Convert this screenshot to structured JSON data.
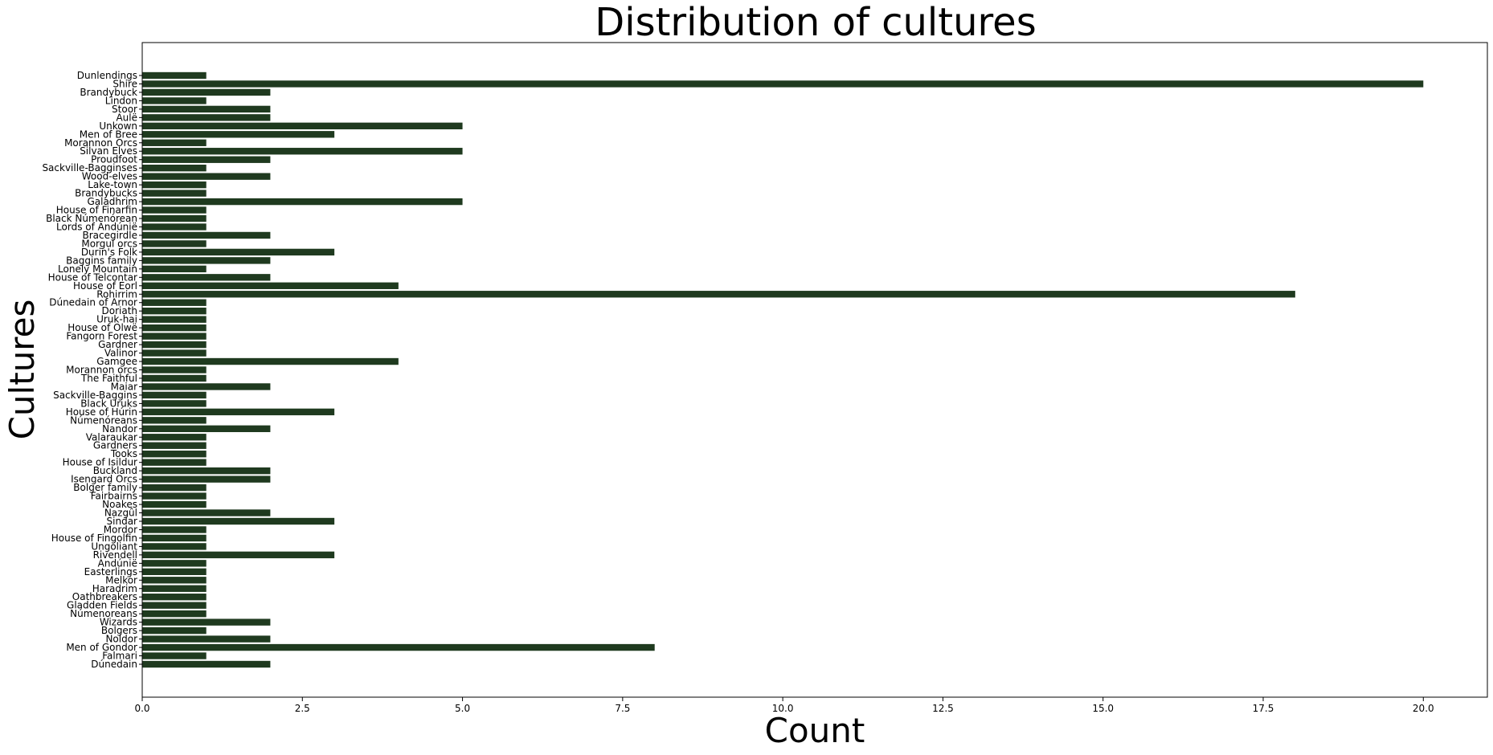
{
  "chart_data": {
    "type": "bar",
    "orientation": "horizontal",
    "title": "Distribution of cultures",
    "xlabel": "Count",
    "ylabel": "Cultures",
    "xlim": [
      0,
      21
    ],
    "xticks": [
      "0.0",
      "2.5",
      "5.0",
      "7.5",
      "10.0",
      "12.5",
      "15.0",
      "17.5",
      "20.0"
    ],
    "grid": false,
    "bar_color": "#1f3a1f",
    "categories": [
      "Dunlendings",
      "Shire",
      "Brandybuck",
      "Lindon",
      "Stoor",
      "Aulë",
      "Unkown",
      "Men of Bree",
      "Morannon Orcs",
      "Silvan Elves",
      "Proudfoot",
      "Sackville-Bagginses",
      "Wood-elves",
      "Lake-town",
      "Brandybucks",
      "Galadhrim",
      "House of Finarfin",
      "Black Númenórean",
      "Lords of Andúnië",
      "Bracegirdle",
      "Morgul orcs",
      "Durin's Folk",
      "Baggins family",
      "Lonely Mountain",
      "House of Telcontar",
      "House of Eorl",
      "Rohirrim",
      "Dúnedain of Arnor",
      "Doriath",
      "Uruk-hai",
      "House of Olwë",
      "Fangorn Forest",
      "Gardner",
      "Valinor",
      "Gamgee",
      "Morannon orcs",
      "The Faithful",
      "Maiar",
      "Sackville-Baggins",
      "Black Uruks",
      "House of Húrin",
      "Númenóreans",
      "Nandor",
      "Valaraukar",
      "Gardners",
      "Tooks",
      "House of Isildur",
      "Buckland",
      "Isengard Orcs",
      "Bolger family",
      "Fairbairns",
      "Noakes",
      "Nazgûl",
      "Sindar",
      "Mordor",
      "House of Fingolfin",
      "Ungoliant",
      "Rivendell",
      "Andúnië",
      "Easterlings",
      "Melkor",
      "Haradrim",
      "Oathbreakers",
      "Gladden Fields",
      "Númenoreans",
      "Wizards",
      "Bolgers",
      "Noldor",
      "Men of Gondor",
      "Falmari",
      "Dúnedain"
    ],
    "values": [
      1,
      20,
      2,
      1,
      2,
      2,
      5,
      3,
      1,
      5,
      2,
      1,
      2,
      1,
      1,
      5,
      1,
      1,
      1,
      2,
      1,
      3,
      2,
      1,
      2,
      4,
      18,
      1,
      1,
      1,
      1,
      1,
      1,
      1,
      4,
      1,
      1,
      2,
      1,
      1,
      3,
      1,
      2,
      1,
      1,
      1,
      1,
      2,
      2,
      1,
      1,
      1,
      2,
      3,
      1,
      1,
      1,
      3,
      1,
      1,
      1,
      1,
      1,
      1,
      1,
      2,
      1,
      2,
      8,
      1,
      2
    ]
  }
}
